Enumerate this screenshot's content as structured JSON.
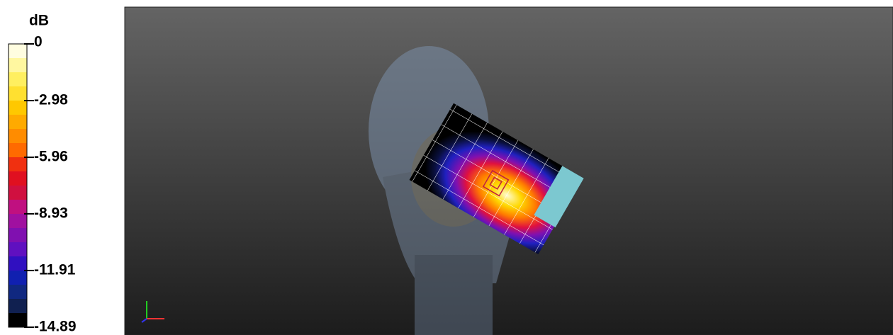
{
  "legend": {
    "unit": "dB",
    "ticks": [
      0,
      -2.98,
      -5.96,
      -8.93,
      -11.91,
      -14.89
    ],
    "colors": [
      "#fffde0",
      "#fff7a0",
      "#ffef60",
      "#ffe030",
      "#ffc800",
      "#ffaa00",
      "#ff8c00",
      "#ff6a00",
      "#f03010",
      "#e01020",
      "#d01040",
      "#c01080",
      "#a010a0",
      "#8010b0",
      "#6010c0",
      "#3010c0",
      "#1020b0",
      "#102880",
      "#102050",
      "#000000"
    ]
  }
}
